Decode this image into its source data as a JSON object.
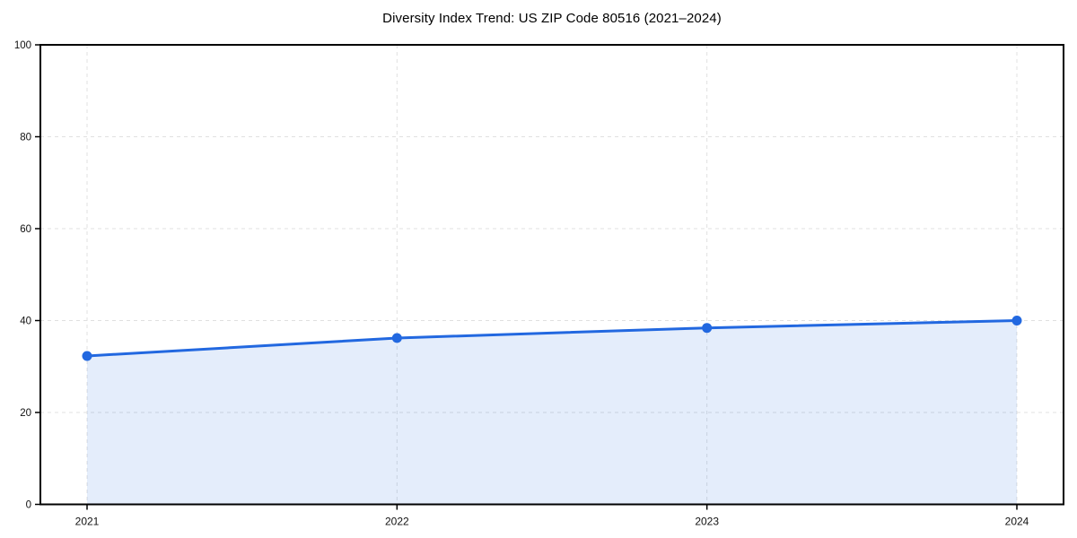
{
  "chart_data": {
    "type": "area",
    "title": "Diversity Index Trend: US ZIP Code 80516 (2021–2024)",
    "x": [
      "2021",
      "2022",
      "2023",
      "2024"
    ],
    "series": [
      {
        "name": "Diversity Index",
        "values": [
          32.3,
          36.2,
          38.4,
          40.0
        ]
      }
    ],
    "xlabel": "",
    "ylabel": "",
    "ylim": [
      0,
      100
    ],
    "yticks": [
      0,
      20,
      40,
      60,
      80,
      100
    ],
    "grid": true,
    "grid_style": "dashed",
    "legend": "none",
    "colors": {
      "line": "#2268e0",
      "marker": "#2268e0",
      "fill": "#2268e0",
      "fill_opacity": 0.12,
      "grid": "#e0e0e0",
      "spine": "#000000",
      "tick_text": "#111111",
      "background": "#ffffff"
    }
  }
}
